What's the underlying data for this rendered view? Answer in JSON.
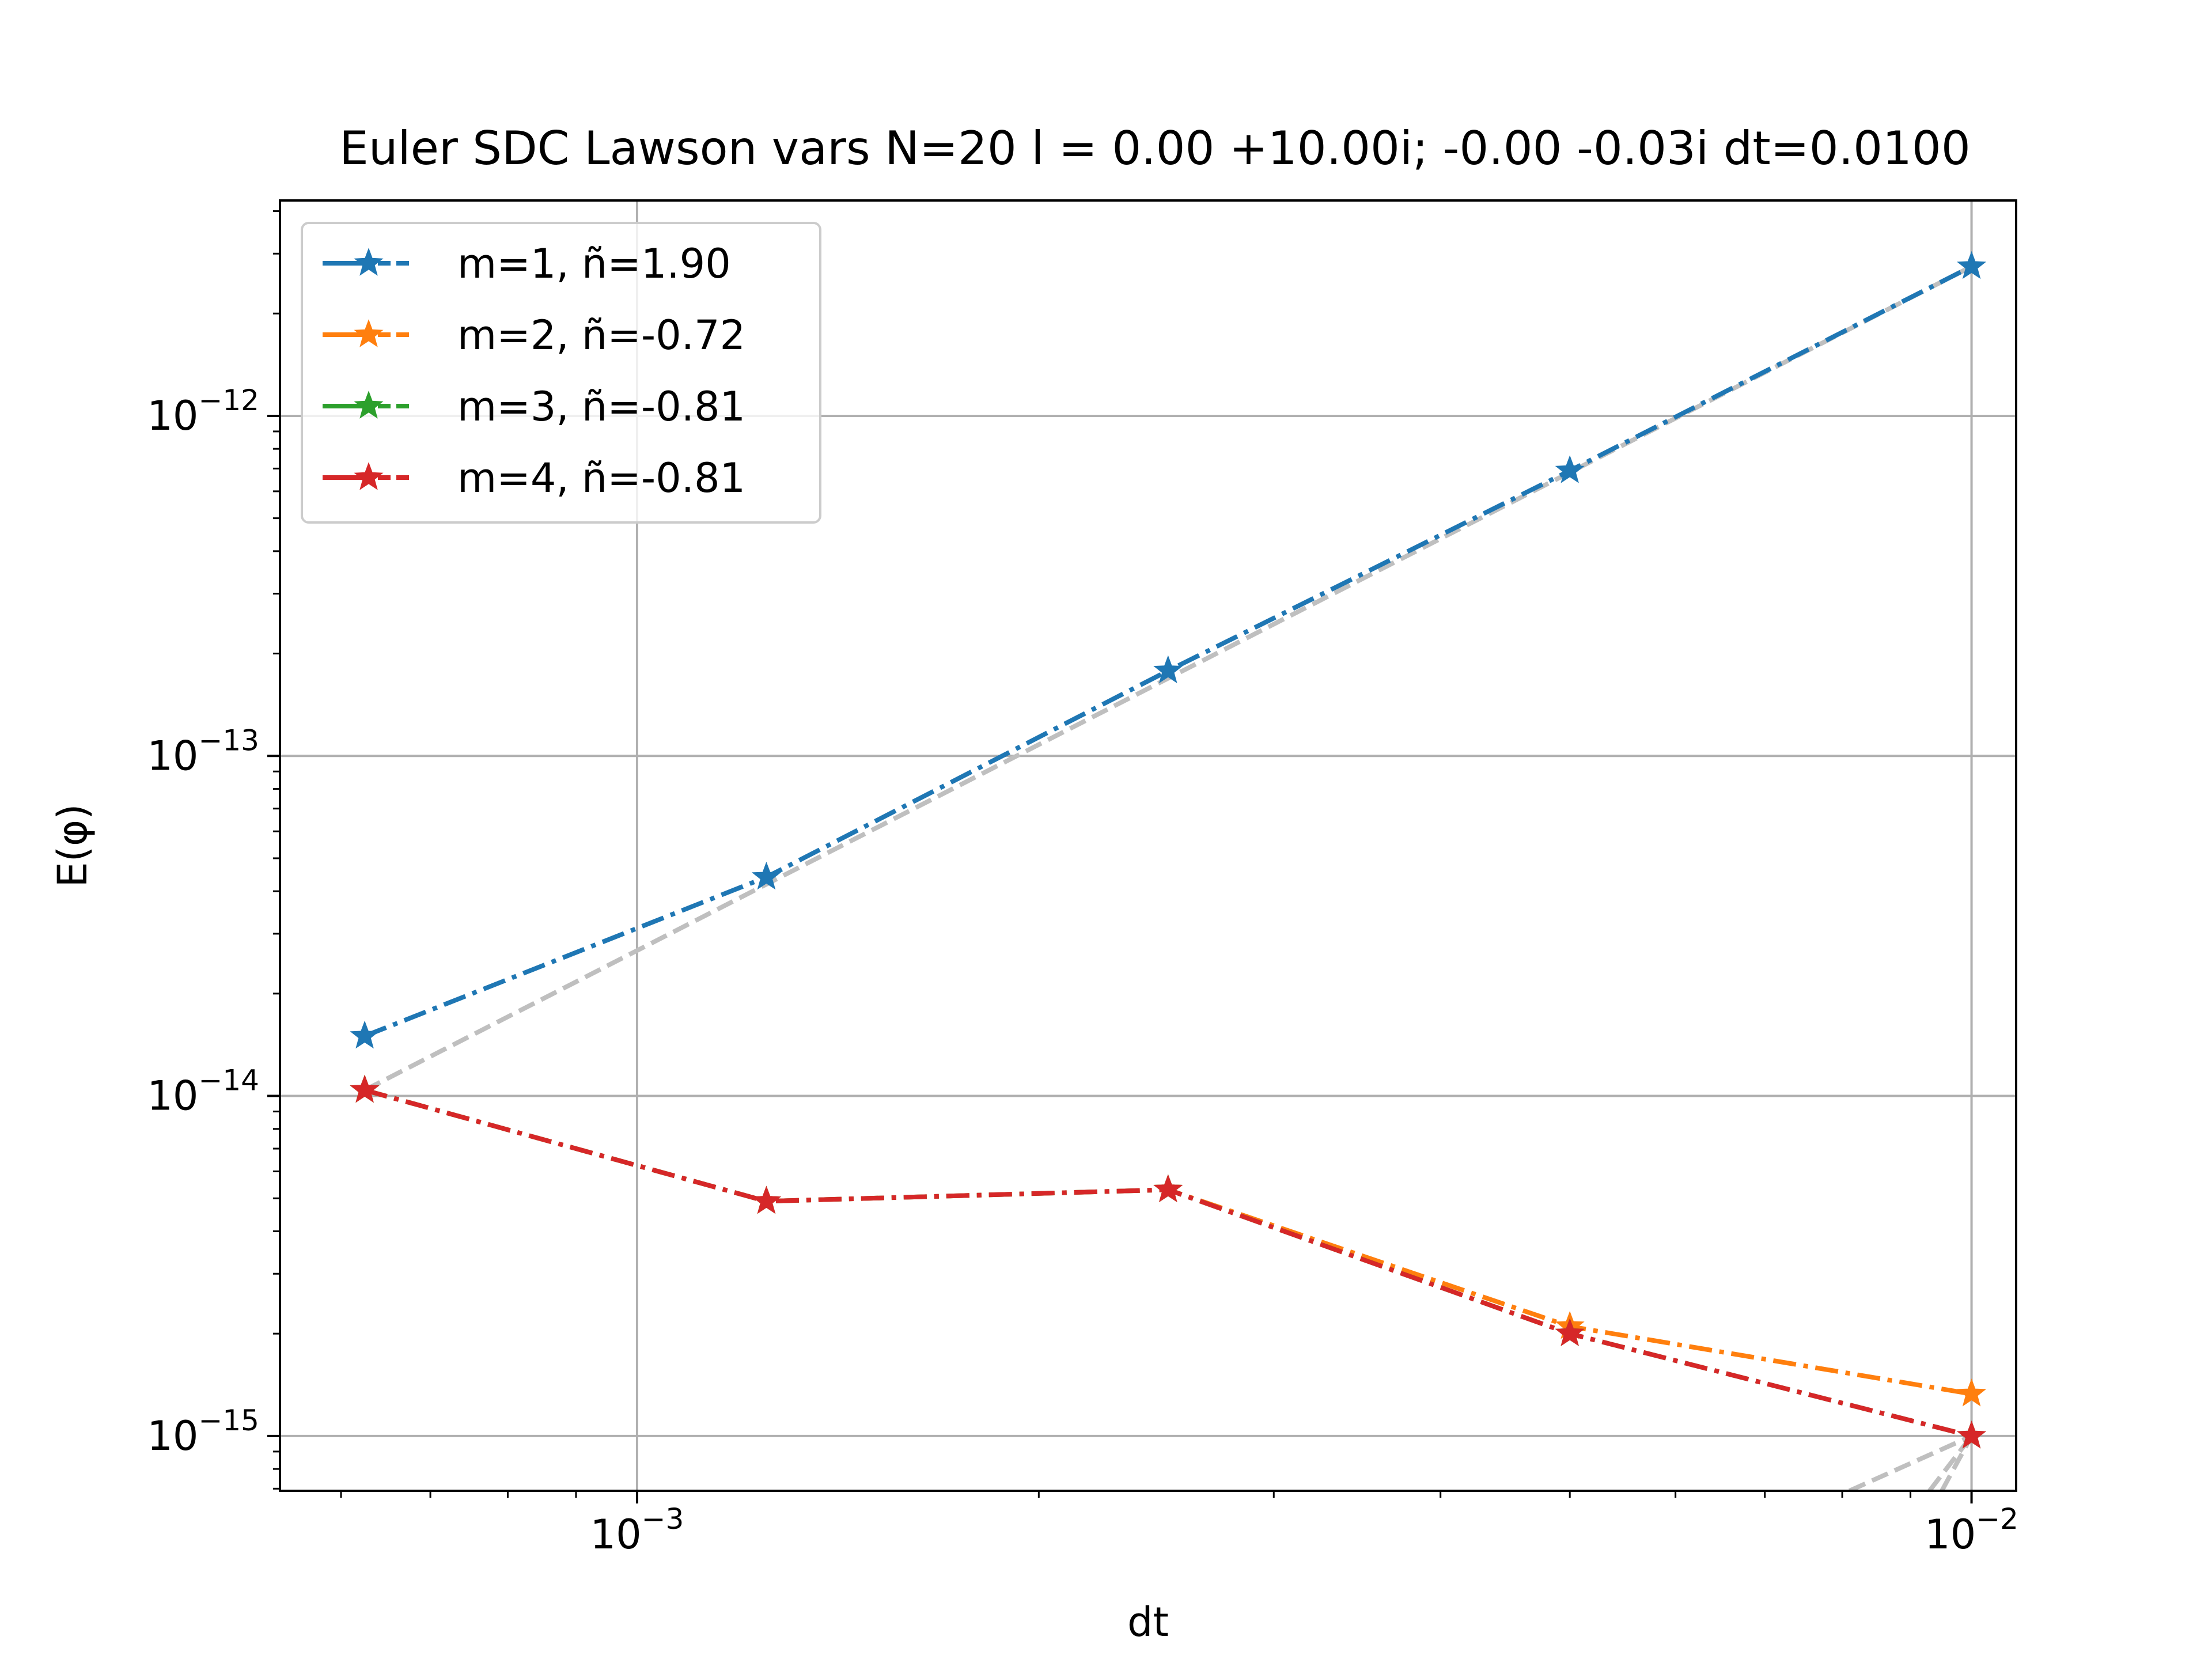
{
  "chart_data": {
    "type": "line",
    "title": "Euler SDC Lawson vars N=20 l = 0.00 +10.00i; -0.00 -0.03i dt=0.0100",
    "xlabel": "dt",
    "ylabel": "E(φ)",
    "xscale": "log",
    "yscale": "log",
    "xlim": [
      0.00054,
      0.0108
    ],
    "ylim": [
      6.9e-16,
      4.3e-12
    ],
    "grid": true,
    "legend_position": "top-left",
    "x": [
      0.000625,
      0.00125,
      0.0025,
      0.005,
      0.01
    ],
    "x_ticks": [
      {
        "value": 0.001,
        "base": "10",
        "exp": "−3"
      },
      {
        "value": 0.01,
        "base": "10",
        "exp": "−2"
      }
    ],
    "y_ticks": [
      {
        "value": 1e-12,
        "base": "10",
        "exp": "−12"
      },
      {
        "value": 1e-13,
        "base": "10",
        "exp": "−13"
      },
      {
        "value": 1e-14,
        "base": "10",
        "exp": "−14"
      },
      {
        "value": 1e-15,
        "base": "10",
        "exp": "−15"
      }
    ],
    "series": [
      {
        "name": "m=1, ñ=1.90",
        "color": "#1f77b4",
        "values": [
          1.5e-14,
          4.4e-14,
          1.78e-13,
          6.9e-13,
          2.75e-12
        ]
      },
      {
        "name": "m=2, ñ=-0.72",
        "color": "#ff7f0e",
        "values": [
          1.04e-14,
          4.9e-15,
          5.3e-15,
          2.1e-15,
          1.33e-15
        ]
      },
      {
        "name": "m=3, ñ=-0.81",
        "color": "#2ca02c",
        "values": [
          1.04e-14,
          4.9e-15,
          5.3e-15,
          2e-15,
          1e-15
        ]
      },
      {
        "name": "m=4, ñ=-0.81",
        "color": "#d62728",
        "values": [
          1.04e-14,
          4.9e-15,
          5.3e-15,
          2e-15,
          1e-15
        ]
      }
    ],
    "reference_lines": [
      {
        "color": "#bfbfbf",
        "points": [
          [
            0.000625,
            1.04e-14
          ],
          [
            0.01,
            2.75e-12
          ]
        ]
      },
      {
        "color": "#bfbfbf",
        "points": [
          [
            0.0081,
            6.9e-16
          ],
          [
            0.01,
            1e-15
          ]
        ]
      },
      {
        "color": "#bfbfbf",
        "points": [
          [
            0.0093,
            6.9e-16
          ],
          [
            0.01,
            1e-15
          ]
        ]
      },
      {
        "color": "#bfbfbf",
        "points": [
          [
            0.0095,
            6.9e-16
          ],
          [
            0.01,
            1e-15
          ]
        ]
      }
    ]
  }
}
